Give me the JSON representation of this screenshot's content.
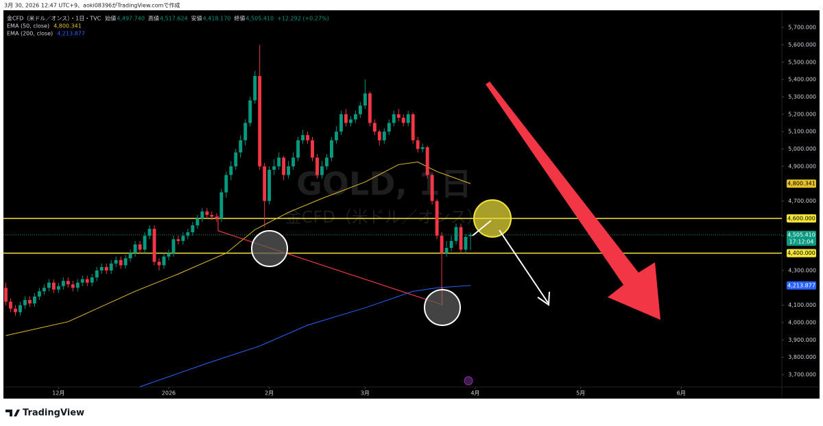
{
  "header": "3月 30, 2026 12:47 UTC+9、aoki08396がTradingView.comで作成",
  "footer": "TradingView",
  "chart_data": {
    "type": "candlestick",
    "symbol": "金CFD（米ドル／オンス）・1日・TVC",
    "ohlc_legend": [
      {
        "label": "始値",
        "value": "4,497.740"
      },
      {
        "label": "高値",
        "value": "4,517.624"
      },
      {
        "label": "安値",
        "value": "4,418.170"
      },
      {
        "label": "終値",
        "value": "4,505.410"
      }
    ],
    "change": "+12.292 (+0.27%)",
    "watermark": [
      "GOLD, 1日",
      "金CFD（米ドル／オンス）"
    ],
    "up_color": "#089981",
    "down_color": "#f23645",
    "open": [
      4200,
      4120,
      4080,
      4060,
      4100,
      4130,
      4110,
      4150,
      4180,
      4200,
      4230,
      4190,
      4210,
      4240,
      4220,
      4200,
      4230,
      4250,
      4230,
      4260,
      4300,
      4320,
      4300,
      4340,
      4360,
      4330,
      4370,
      4400,
      4450,
      4420,
      4500,
      4540,
      4350,
      4330,
      4380,
      4400,
      4480,
      4470,
      4500,
      4520,
      4560,
      4600,
      4640,
      4620,
      4610,
      4600,
      4750,
      4850,
      4900,
      4980,
      5050,
      5150,
      5280,
      5420,
      4900,
      4700,
      4880,
      4900,
      4950,
      4850,
      4900,
      4950,
      5050,
      5080,
      5050,
      4950,
      4850,
      4900,
      4950,
      5050,
      5100,
      5200,
      5150,
      5170,
      5200,
      5250,
      5320,
      5150,
      5100,
      5050,
      5100,
      5150,
      5200,
      5180,
      5150,
      5200,
      5050,
      5000,
      5010,
      4850,
      4700,
      4500,
      4400,
      4430,
      4470,
      4550,
      4420,
      4497.74
    ],
    "high": [
      4230,
      4140,
      4100,
      4120,
      4150,
      4150,
      4170,
      4200,
      4220,
      4250,
      4250,
      4230,
      4260,
      4260,
      4240,
      4250,
      4270,
      4270,
      4280,
      4320,
      4340,
      4340,
      4360,
      4380,
      4380,
      4390,
      4420,
      4470,
      4470,
      4520,
      4560,
      4560,
      4370,
      4400,
      4420,
      4500,
      4500,
      4520,
      4540,
      4580,
      4620,
      4660,
      4660,
      4640,
      4630,
      4770,
      4870,
      4930,
      5000,
      5080,
      5170,
      5300,
      5450,
      5600,
      4920,
      4900,
      4940,
      4980,
      4960,
      4930,
      4980,
      5070,
      5110,
      5100,
      5070,
      4970,
      4930,
      4970,
      5070,
      5130,
      5220,
      5230,
      5190,
      5220,
      5270,
      5400,
      5330,
      5170,
      5110,
      5120,
      5170,
      5220,
      5230,
      5200,
      5220,
      5210,
      5070,
      5030,
      5020,
      4860,
      4710,
      4520,
      4470,
      4500,
      4570,
      4570,
      4510,
      4517.624
    ],
    "low": [
      4100,
      4060,
      4040,
      4040,
      4080,
      4090,
      4090,
      4130,
      4160,
      4180,
      4170,
      4170,
      4190,
      4200,
      4180,
      4180,
      4210,
      4210,
      4210,
      4240,
      4280,
      4280,
      4280,
      4320,
      4310,
      4310,
      4350,
      4380,
      4400,
      4400,
      4480,
      4330,
      4300,
      4310,
      4360,
      4380,
      4450,
      4450,
      4480,
      4500,
      4540,
      4580,
      4600,
      4590,
      4580,
      4580,
      4720,
      4820,
      4880,
      4950,
      5020,
      5130,
      5260,
      4880,
      4550,
      4680,
      4850,
      4880,
      4820,
      4830,
      4880,
      4930,
      5030,
      5030,
      4930,
      4830,
      4830,
      4880,
      4930,
      5030,
      5080,
      5130,
      5130,
      5150,
      5180,
      5230,
      5130,
      5080,
      5020,
      5030,
      5080,
      5130,
      5160,
      5130,
      5130,
      5030,
      4980,
      4980,
      4830,
      4680,
      4480,
      4100,
      4380,
      4410,
      4450,
      4400,
      4400,
      4418.17
    ],
    "close": [
      4120,
      4080,
      4060,
      4100,
      4130,
      4110,
      4150,
      4180,
      4200,
      4230,
      4190,
      4210,
      4240,
      4220,
      4200,
      4230,
      4250,
      4230,
      4260,
      4300,
      4320,
      4300,
      4340,
      4360,
      4330,
      4370,
      4400,
      4450,
      4420,
      4500,
      4540,
      4350,
      4330,
      4380,
      4400,
      4480,
      4470,
      4500,
      4520,
      4560,
      4600,
      4640,
      4620,
      4610,
      4600,
      4750,
      4850,
      4900,
      4980,
      5050,
      5150,
      5280,
      5420,
      4900,
      4700,
      4880,
      4900,
      4950,
      4850,
      4900,
      4950,
      5050,
      5080,
      5050,
      4950,
      4850,
      4900,
      4950,
      5050,
      5100,
      5200,
      5150,
      5170,
      5200,
      5250,
      5320,
      5150,
      5100,
      5050,
      5100,
      5150,
      5200,
      5180,
      5150,
      5200,
      5050,
      5000,
      5010,
      4850,
      4700,
      4500,
      4400,
      4430,
      4470,
      4550,
      4420,
      4493.118,
      4505.41
    ],
    "overlays": [
      {
        "name": "EMA (200, close)",
        "color": "#2962ff",
        "last_label": "4,213.877",
        "x": [
          28,
          42,
          53,
          63,
          75,
          85,
          90,
          97
        ],
        "values": [
          3630,
          3765,
          3865,
          3985,
          4085,
          4180,
          4200,
          4213.877
        ]
      },
      {
        "name": "EMA (50, close)",
        "color": "#e6c229",
        "last_label": "4,800.341",
        "x": [
          0,
          13,
          27,
          36,
          46,
          52,
          59,
          66,
          75,
          82,
          86,
          90,
          97
        ],
        "values": [
          3925,
          4005,
          4180,
          4280,
          4400,
          4535,
          4635,
          4715,
          4810,
          4910,
          4925,
          4870,
          4800.341
        ]
      }
    ],
    "hlines": [
      {
        "value": 4600,
        "label": "4,600.000"
      },
      {
        "value": 4400,
        "label": "4,400.000"
      }
    ],
    "hline_color": "#f5e63a",
    "last_price": {
      "value": 4505.41,
      "label": "4,505.410",
      "countdown": "17:12:04"
    },
    "xlim": [
      -0.5,
      162
    ],
    "ylim": [
      3629,
      5795
    ],
    "xticks": [
      {
        "value": 11,
        "label": "12月"
      },
      {
        "value": 34,
        "label": "2026"
      },
      {
        "value": 55,
        "label": "2月"
      },
      {
        "value": 75,
        "label": "3月"
      },
      {
        "value": 98,
        "label": "4月"
      },
      {
        "value": 120,
        "label": "5月"
      },
      {
        "value": 141,
        "label": "6月"
      }
    ],
    "yticks": [
      {
        "value": 5700,
        "label": "5,700.000"
      },
      {
        "value": 5600,
        "label": "5,600.000"
      },
      {
        "value": 5500,
        "label": "5,500.000"
      },
      {
        "value": 5400,
        "label": "5,400.000"
      },
      {
        "value": 5300,
        "label": "5,300.000"
      },
      {
        "value": 5200,
        "label": "5,200.000"
      },
      {
        "value": 5100,
        "label": "5,100.000"
      },
      {
        "value": 5000,
        "label": "5,000.000"
      },
      {
        "value": 4900,
        "label": "4,900.000"
      },
      {
        "value": 4700,
        "label": "4,700.000"
      },
      {
        "value": 4500,
        "label": "4,500.000"
      },
      {
        "value": 4300,
        "label": "4,300.000"
      },
      {
        "value": 4100,
        "label": "4,100.000"
      },
      {
        "value": 4000,
        "label": "4,000.000"
      },
      {
        "value": 3900,
        "label": "3,900.000"
      },
      {
        "value": 3800,
        "label": "3,800.000"
      },
      {
        "value": 3700,
        "label": "3,700.000"
      }
    ]
  }
}
